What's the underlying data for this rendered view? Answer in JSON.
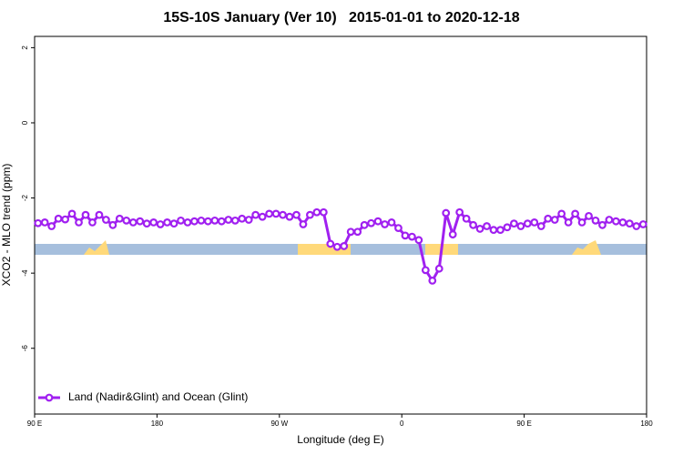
{
  "chart_data": {
    "type": "line",
    "title": "15S-10S January (Ver 10)   2015-01-01 to 2020-12-18",
    "xlabel": "Longitude (deg E)",
    "ylabel": "XCO2 - MLO trend (ppm)",
    "xlim": [
      90,
      540
    ],
    "ylim": [
      -7.75,
      2.3
    ],
    "xticks": [
      {
        "value": 90,
        "label": "90 E"
      },
      {
        "value": 180,
        "label": "180"
      },
      {
        "value": 270,
        "label": "90 W"
      },
      {
        "value": 360,
        "label": "0"
      },
      {
        "value": 450,
        "label": "90 E"
      },
      {
        "value": 540,
        "label": "180"
      }
    ],
    "yticks": [
      -6,
      -4,
      -2,
      0,
      2
    ],
    "legend": "bottom-left",
    "x": [
      92.5,
      97.5,
      102.5,
      107.5,
      112.5,
      117.5,
      122.5,
      127.5,
      132.5,
      137.5,
      142.5,
      147.5,
      152.5,
      157.5,
      162.5,
      167.5,
      172.5,
      177.5,
      182.5,
      187.5,
      192.5,
      197.5,
      202.5,
      207.5,
      212.5,
      217.5,
      222.5,
      227.5,
      232.5,
      237.5,
      242.5,
      247.5,
      252.5,
      257.5,
      262.5,
      267.5,
      272.5,
      277.5,
      282.5,
      287.5,
      292.5,
      297.5,
      302.5,
      307.5,
      312.5,
      317.5,
      322.5,
      327.5,
      332.5,
      337.5,
      342.5,
      347.5,
      352.5,
      357.5,
      362.5,
      367.5,
      372.5,
      377.5,
      382.5,
      387.5,
      392.5,
      397.5,
      402.5,
      407.5,
      412.5,
      417.5,
      422.5,
      427.5,
      432.5,
      437.5,
      442.5,
      447.5,
      452.5,
      457.5,
      462.5,
      467.5,
      472.5,
      477.5,
      482.5,
      487.5,
      492.5,
      497.5,
      502.5,
      507.5,
      512.5,
      517.5,
      522.5,
      527.5,
      532.5,
      537.5
    ],
    "series": [
      {
        "name": "Land (Nadir&Glint) and Ocean (Glint)",
        "color": "#a020f0",
        "values": [
          -2.67,
          -2.65,
          -2.75,
          -2.55,
          -2.57,
          -2.42,
          -2.65,
          -2.45,
          -2.65,
          -2.45,
          -2.58,
          -2.72,
          -2.55,
          -2.6,
          -2.65,
          -2.62,
          -2.68,
          -2.65,
          -2.7,
          -2.65,
          -2.68,
          -2.6,
          -2.65,
          -2.62,
          -2.6,
          -2.62,
          -2.6,
          -2.62,
          -2.58,
          -2.6,
          -2.55,
          -2.58,
          -2.45,
          -2.5,
          -2.42,
          -2.42,
          -2.45,
          -2.5,
          -2.45,
          -2.7,
          -2.45,
          -2.38,
          -2.38,
          -3.22,
          -3.3,
          -3.28,
          -2.9,
          -2.9,
          -2.72,
          -2.67,
          -2.62,
          -2.7,
          -2.65,
          -2.8,
          -3.0,
          -3.03,
          -3.12,
          -3.92,
          -4.2,
          -3.88,
          -2.4,
          -2.97,
          -2.38,
          -2.55,
          -2.72,
          -2.82,
          -2.75,
          -2.85,
          -2.85,
          -2.78,
          -2.68,
          -2.75,
          -2.68,
          -2.65,
          -2.75,
          -2.55,
          -2.58,
          -2.42,
          -2.65,
          -2.42,
          -2.65,
          -2.48,
          -2.6,
          -2.72,
          -2.58,
          -2.62,
          -2.65,
          -2.68,
          -2.75,
          -2.7
        ]
      }
    ]
  }
}
